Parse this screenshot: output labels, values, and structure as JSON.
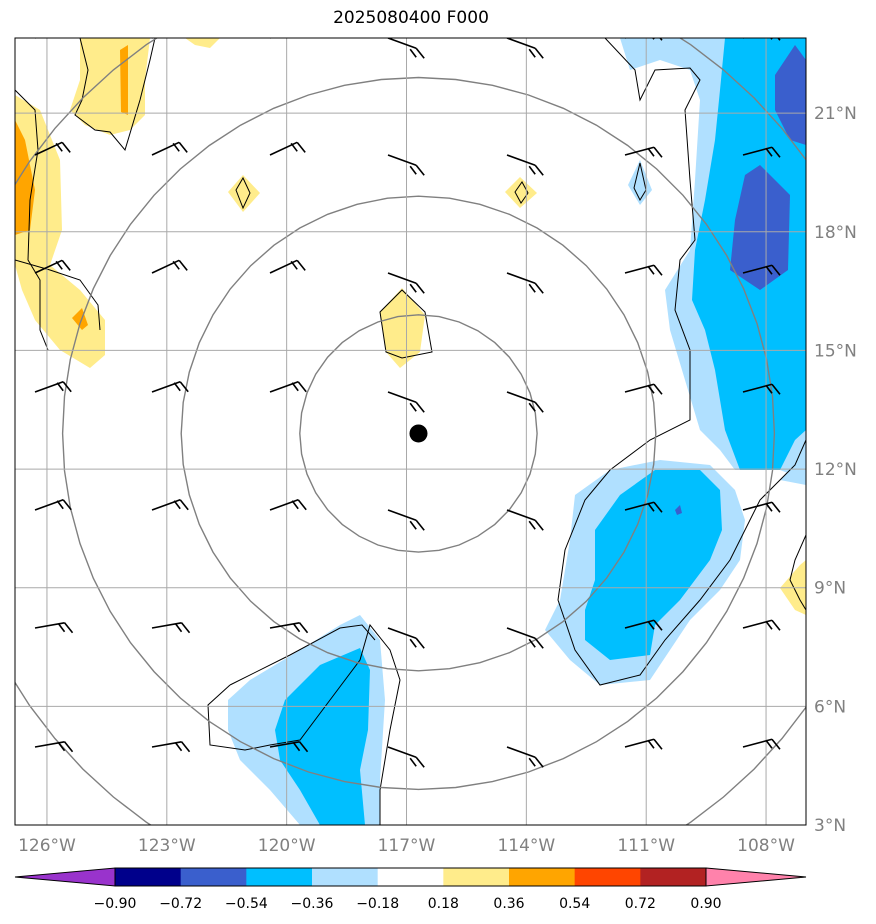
{
  "title": "2025080400 F000",
  "map": {
    "center_marker": {
      "lon": -116.7,
      "lat": 12.9
    },
    "lon_range": [
      -126.8,
      -107.0
    ],
    "lat_range": [
      3.0,
      22.9
    ],
    "lon_ticks": [
      "126°W",
      "123°W",
      "120°W",
      "117°W",
      "114°W",
      "111°W",
      "108°W"
    ],
    "lat_ticks": [
      "3°N",
      "6°N",
      "9°N",
      "12°N",
      "15°N",
      "18°N",
      "21°N"
    ],
    "range_rings_deg": [
      3,
      6,
      9,
      12
    ]
  },
  "colorbar": {
    "levels": [
      "−0.90",
      "−0.72",
      "−0.54",
      "−0.36",
      "−0.18",
      "0.18",
      "0.36",
      "0.54",
      "0.72",
      "0.90"
    ],
    "colors": [
      "#9933cc",
      "#00008b",
      "#3a5fcd",
      "#00bfff",
      "#b0e0ff",
      "#ffffff",
      "#ffec8b",
      "#ffa500",
      "#ff4500",
      "#b22222",
      "#ff82ab"
    ]
  },
  "colors": {
    "blue_light": "#b0e0ff",
    "blue_mid": "#00bfff",
    "blue_dark": "#3a5fcd",
    "yellow": "#ffec8b",
    "orange": "#ffa500",
    "grid": "#a9a9a9",
    "ring": "#808080"
  }
}
